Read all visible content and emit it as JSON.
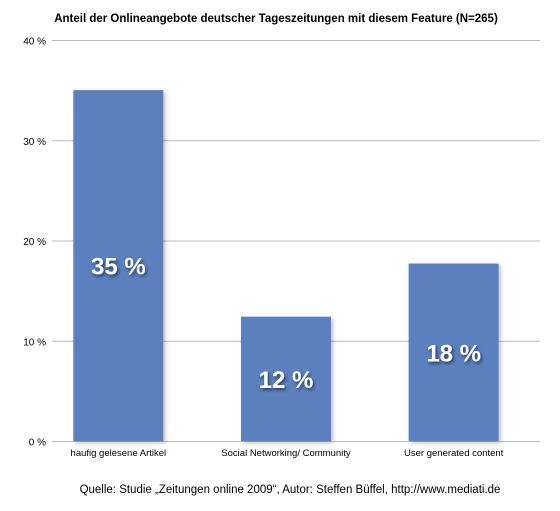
{
  "chart_data": {
    "type": "bar",
    "title": "Anteil der Onlineangebote deutscher Tageszeitungen mit diesem Feature (N=265)",
    "categories": [
      "haufig gelesene Artikel",
      "Social Networking/ Community",
      "User generated content"
    ],
    "values": [
      35,
      12.4,
      17.7
    ],
    "data_labels": [
      "35 %",
      "12 %",
      "18 %"
    ],
    "ylim": [
      0,
      40
    ],
    "yticks": [
      0,
      10,
      20,
      30,
      40
    ],
    "ytick_labels": [
      "0 %",
      "10 %",
      "20 %",
      "30 %",
      "40 %"
    ],
    "xlabel": "",
    "ylabel": "",
    "grid": true,
    "bar_color": "#5b7fbe",
    "axis_color": "#bbbbbb",
    "source": "Quelle: Studie „Zeitungen online 2009“, Autor: Steffen Büffel, http://www.mediati.de"
  }
}
